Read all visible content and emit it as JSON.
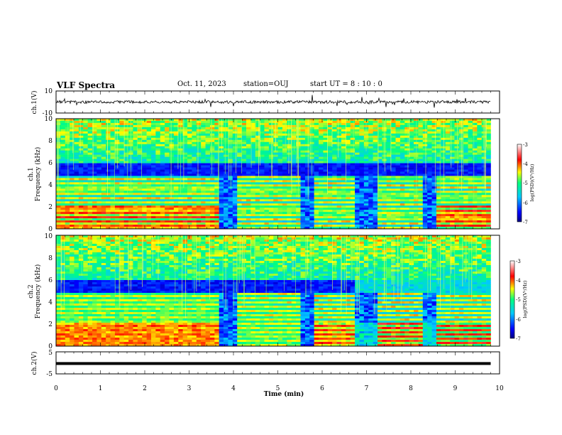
{
  "header": {
    "title": "VLF Spectra",
    "date": "Oct. 11, 2023",
    "station": "station=OUJ",
    "start": "start UT =  8 : 10 : 0"
  },
  "chart_data": [
    {
      "type": "line",
      "id": "ch1-waveform",
      "ylabel": "ch.1(V)",
      "ylim": [
        -10,
        10
      ],
      "yticks": [
        "10",
        "-10"
      ],
      "xlim": [
        0,
        10
      ],
      "baseline": 0.0,
      "color": "#000000"
    },
    {
      "type": "heatmap",
      "id": "ch1-spectrogram",
      "ylabel_line1": "ch.1",
      "ylabel_line2": "Frequency (kHz)",
      "ylim": [
        0,
        10
      ],
      "yticks": [
        "0",
        "2",
        "4",
        "6",
        "8",
        "10"
      ],
      "xlim": [
        0,
        10
      ],
      "data_end_min": 9.8,
      "colorbar": {
        "label": "log(PSD)(V²/Hz)",
        "range": [
          -7,
          -3
        ],
        "ticks": [
          "-3",
          "-4",
          "-5",
          "-6",
          "-7"
        ]
      }
    },
    {
      "type": "heatmap",
      "id": "ch2-spectrogram",
      "ylabel_line1": "ch.2",
      "ylabel_line2": "Frequency (kHz)",
      "ylim": [
        0,
        10
      ],
      "yticks": [
        "0",
        "2",
        "4",
        "6",
        "8",
        "10"
      ],
      "xlim": [
        0,
        10
      ],
      "data_end_min": 9.8,
      "colorbar": {
        "label": "log(PSD)(V²/Hz)",
        "range": [
          -7,
          -3
        ],
        "ticks": [
          "-3",
          "-4",
          "-5",
          "-6",
          "-7"
        ]
      }
    },
    {
      "type": "line",
      "id": "ch2-waveform",
      "ylabel": "ch.2(V)",
      "ylim": [
        -5,
        5
      ],
      "yticks": [
        "5",
        "-5"
      ],
      "xlim": [
        0,
        10
      ],
      "baseline": -0.3,
      "color": "#000000"
    }
  ],
  "xaxis": {
    "label": "Time (min)",
    "ticks": [
      "0",
      "1",
      "2",
      "3",
      "4",
      "5",
      "6",
      "7",
      "8",
      "9",
      "10"
    ]
  }
}
